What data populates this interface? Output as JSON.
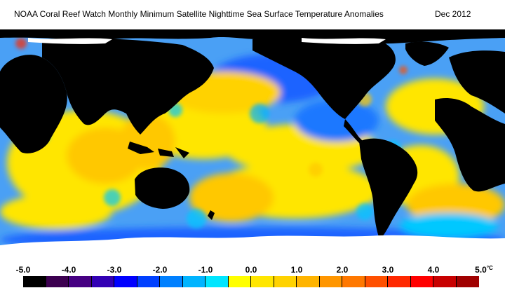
{
  "header": {
    "title": "NOAA Coral Reef Watch Monthly Minimum Satellite Nighttime Sea Surface Temperature Anomalies",
    "date": "Dec 2012"
  },
  "map": {
    "projection": "equirectangular",
    "land_color": "#000000",
    "ice_color": "#ffffff",
    "typical_anomaly_colors": [
      "#0064ff",
      "#00c8ff",
      "#ffff00",
      "#ffc800",
      "#ff8c00"
    ]
  },
  "legend": {
    "ticks": [
      "-5.0",
      "-4.0",
      "-3.0",
      "-2.0",
      "-1.0",
      "0.0",
      "1.0",
      "2.0",
      "3.0",
      "4.0",
      "5.0"
    ],
    "unit": "°C",
    "colors": [
      "#000000",
      "#3c0050",
      "#460082",
      "#3200b4",
      "#0000ff",
      "#0040ff",
      "#0080ff",
      "#00b4ff",
      "#00e6ff",
      "#ffff00",
      "#ffe600",
      "#ffd200",
      "#ffb400",
      "#ff9600",
      "#ff7800",
      "#ff5000",
      "#ff2800",
      "#ff0000",
      "#c80000",
      "#a00000"
    ]
  }
}
